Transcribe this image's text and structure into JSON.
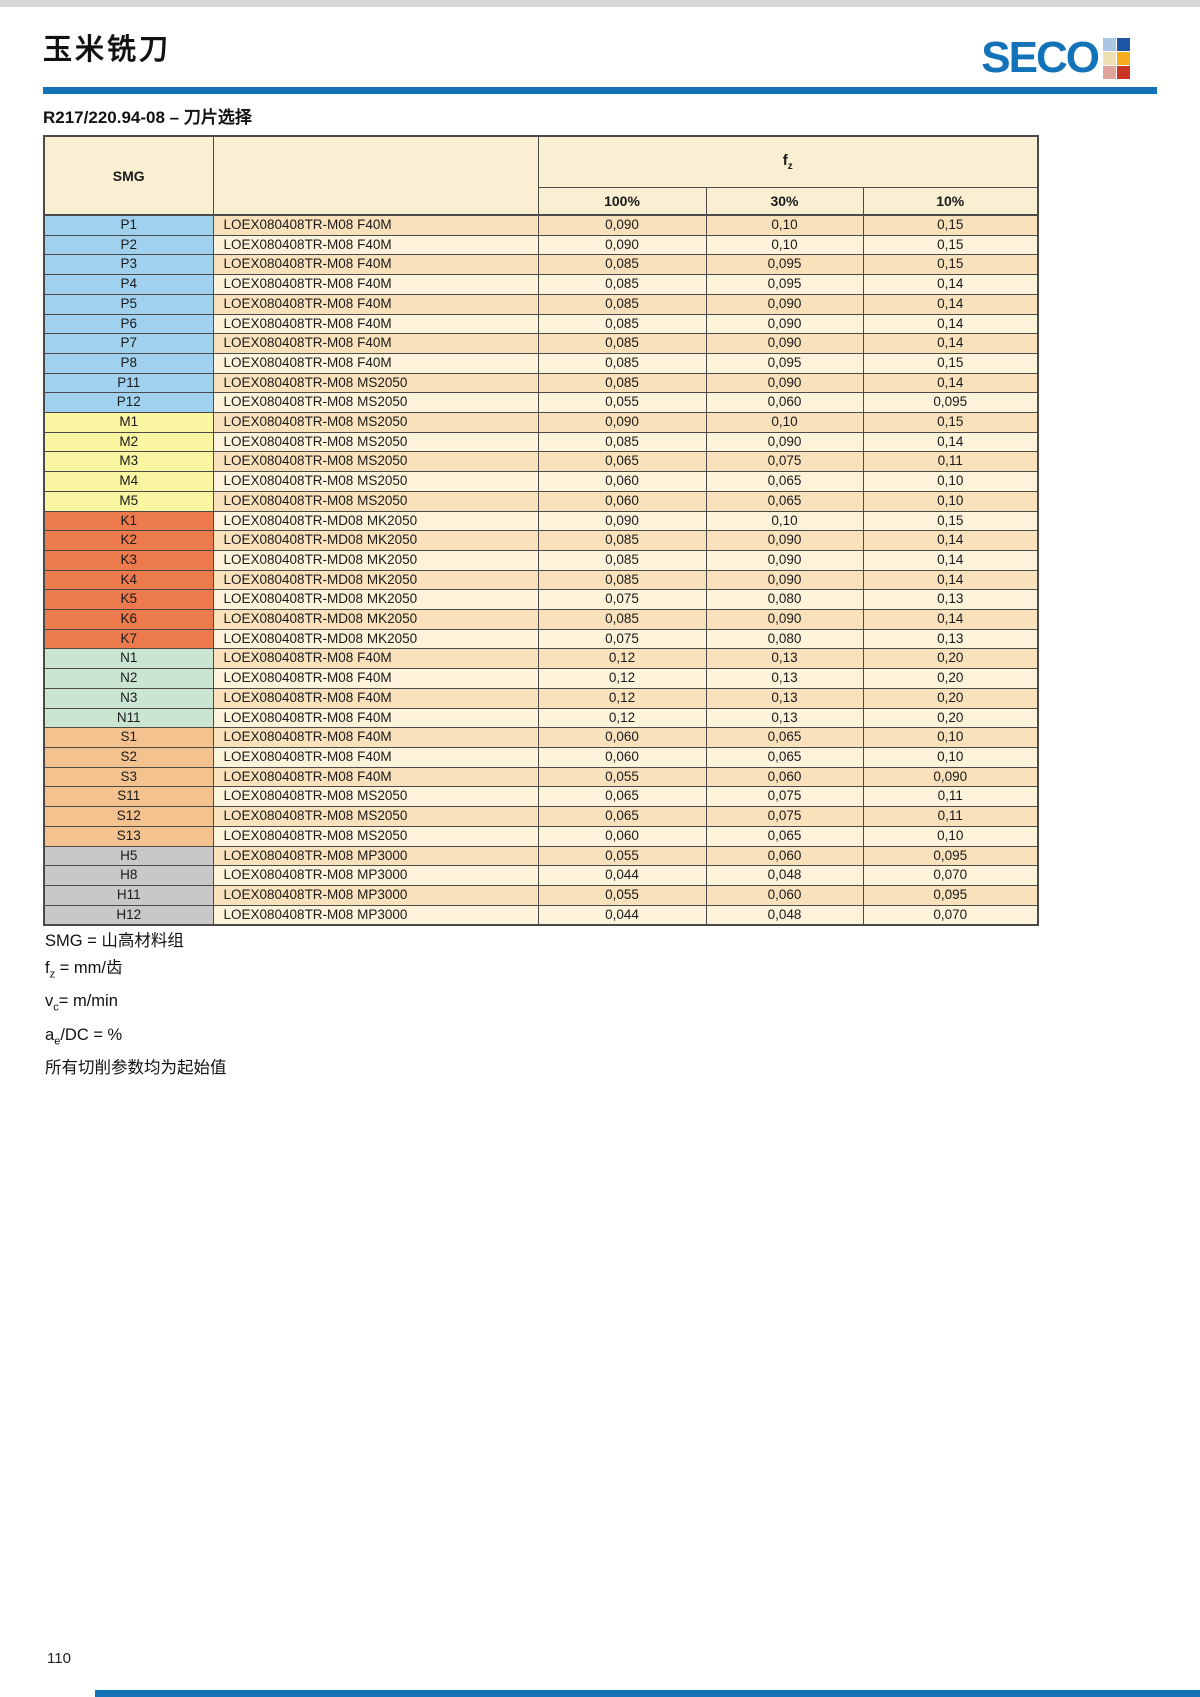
{
  "page": {
    "top_title": "玉米铣刀",
    "section_title": "R217/220.94-08 – 刀片选择",
    "page_number": "110"
  },
  "logo": {
    "text": "SECO",
    "tiles": [
      "#A9C7E5",
      "#1C56A4",
      "#F0DFB2",
      "#F6AC1E",
      "#DFA49C",
      "#C93425"
    ]
  },
  "table": {
    "header": {
      "smg_label": "SMG",
      "fz_label": "f",
      "fz_sub": "z",
      "percent_cols": [
        "100%",
        "30%",
        "10%"
      ]
    },
    "rows": [
      {
        "smg": "P1",
        "group": "P",
        "insert": "LOEX080408TR-M08 F40M",
        "v100": "0,090",
        "v30": "0,10",
        "v10": "0,15"
      },
      {
        "smg": "P2",
        "group": "P",
        "insert": "LOEX080408TR-M08 F40M",
        "v100": "0,090",
        "v30": "0,10",
        "v10": "0,15"
      },
      {
        "smg": "P3",
        "group": "P",
        "insert": "LOEX080408TR-M08 F40M",
        "v100": "0,085",
        "v30": "0,095",
        "v10": "0,15"
      },
      {
        "smg": "P4",
        "group": "P",
        "insert": "LOEX080408TR-M08 F40M",
        "v100": "0,085",
        "v30": "0,095",
        "v10": "0,14"
      },
      {
        "smg": "P5",
        "group": "P",
        "insert": "LOEX080408TR-M08 F40M",
        "v100": "0,085",
        "v30": "0,090",
        "v10": "0,14"
      },
      {
        "smg": "P6",
        "group": "P",
        "insert": "LOEX080408TR-M08 F40M",
        "v100": "0,085",
        "v30": "0,090",
        "v10": "0,14"
      },
      {
        "smg": "P7",
        "group": "P",
        "insert": "LOEX080408TR-M08 F40M",
        "v100": "0,085",
        "v30": "0,090",
        "v10": "0,14"
      },
      {
        "smg": "P8",
        "group": "P",
        "insert": "LOEX080408TR-M08 F40M",
        "v100": "0,085",
        "v30": "0,095",
        "v10": "0,15"
      },
      {
        "smg": "P11",
        "group": "P",
        "insert": "LOEX080408TR-M08 MS2050",
        "v100": "0,085",
        "v30": "0,090",
        "v10": "0,14"
      },
      {
        "smg": "P12",
        "group": "P",
        "insert": "LOEX080408TR-M08 MS2050",
        "v100": "0,055",
        "v30": "0,060",
        "v10": "0,095"
      },
      {
        "smg": "M1",
        "group": "M",
        "insert": "LOEX080408TR-M08 MS2050",
        "v100": "0,090",
        "v30": "0,10",
        "v10": "0,15"
      },
      {
        "smg": "M2",
        "group": "M",
        "insert": "LOEX080408TR-M08 MS2050",
        "v100": "0,085",
        "v30": "0,090",
        "v10": "0,14"
      },
      {
        "smg": "M3",
        "group": "M",
        "insert": "LOEX080408TR-M08 MS2050",
        "v100": "0,065",
        "v30": "0,075",
        "v10": "0,11"
      },
      {
        "smg": "M4",
        "group": "M",
        "insert": "LOEX080408TR-M08 MS2050",
        "v100": "0,060",
        "v30": "0,065",
        "v10": "0,10"
      },
      {
        "smg": "M5",
        "group": "M",
        "insert": "LOEX080408TR-M08 MS2050",
        "v100": "0,060",
        "v30": "0,065",
        "v10": "0,10"
      },
      {
        "smg": "K1",
        "group": "K",
        "insert": "LOEX080408TR-MD08 MK2050",
        "v100": "0,090",
        "v30": "0,10",
        "v10": "0,15"
      },
      {
        "smg": "K2",
        "group": "K",
        "insert": "LOEX080408TR-MD08 MK2050",
        "v100": "0,085",
        "v30": "0,090",
        "v10": "0,14"
      },
      {
        "smg": "K3",
        "group": "K",
        "insert": "LOEX080408TR-MD08 MK2050",
        "v100": "0,085",
        "v30": "0,090",
        "v10": "0,14"
      },
      {
        "smg": "K4",
        "group": "K",
        "insert": "LOEX080408TR-MD08 MK2050",
        "v100": "0,085",
        "v30": "0,090",
        "v10": "0,14"
      },
      {
        "smg": "K5",
        "group": "K",
        "insert": "LOEX080408TR-MD08 MK2050",
        "v100": "0,075",
        "v30": "0,080",
        "v10": "0,13"
      },
      {
        "smg": "K6",
        "group": "K",
        "insert": "LOEX080408TR-MD08 MK2050",
        "v100": "0,085",
        "v30": "0,090",
        "v10": "0,14"
      },
      {
        "smg": "K7",
        "group": "K",
        "insert": "LOEX080408TR-MD08 MK2050",
        "v100": "0,075",
        "v30": "0,080",
        "v10": "0,13"
      },
      {
        "smg": "N1",
        "group": "N",
        "insert": "LOEX080408TR-M08 F40M",
        "v100": "0,12",
        "v30": "0,13",
        "v10": "0,20"
      },
      {
        "smg": "N2",
        "group": "N",
        "insert": "LOEX080408TR-M08 F40M",
        "v100": "0,12",
        "v30": "0,13",
        "v10": "0,20"
      },
      {
        "smg": "N3",
        "group": "N",
        "insert": "LOEX080408TR-M08 F40M",
        "v100": "0,12",
        "v30": "0,13",
        "v10": "0,20"
      },
      {
        "smg": "N11",
        "group": "N",
        "insert": "LOEX080408TR-M08 F40M",
        "v100": "0,12",
        "v30": "0,13",
        "v10": "0,20"
      },
      {
        "smg": "S1",
        "group": "S",
        "insert": "LOEX080408TR-M08 F40M",
        "v100": "0,060",
        "v30": "0,065",
        "v10": "0,10"
      },
      {
        "smg": "S2",
        "group": "S",
        "insert": "LOEX080408TR-M08 F40M",
        "v100": "0,060",
        "v30": "0,065",
        "v10": "0,10"
      },
      {
        "smg": "S3",
        "group": "S",
        "insert": "LOEX080408TR-M08 F40M",
        "v100": "0,055",
        "v30": "0,060",
        "v10": "0,090"
      },
      {
        "smg": "S11",
        "group": "S",
        "insert": "LOEX080408TR-M08 MS2050",
        "v100": "0,065",
        "v30": "0,075",
        "v10": "0,11"
      },
      {
        "smg": "S12",
        "group": "S",
        "insert": "LOEX080408TR-M08 MS2050",
        "v100": "0,065",
        "v30": "0,075",
        "v10": "0,11"
      },
      {
        "smg": "S13",
        "group": "S",
        "insert": "LOEX080408TR-M08 MS2050",
        "v100": "0,060",
        "v30": "0,065",
        "v10": "0,10"
      },
      {
        "smg": "H5",
        "group": "H",
        "insert": "LOEX080408TR-M08 MP3000",
        "v100": "0,055",
        "v30": "0,060",
        "v10": "0,095"
      },
      {
        "smg": "H8",
        "group": "H",
        "insert": "LOEX080408TR-M08 MP3000",
        "v100": "0,044",
        "v30": "0,048",
        "v10": "0,070"
      },
      {
        "smg": "H11",
        "group": "H",
        "insert": "LOEX080408TR-M08 MP3000",
        "v100": "0,055",
        "v30": "0,060",
        "v10": "0,095"
      },
      {
        "smg": "H12",
        "group": "H",
        "insert": "LOEX080408TR-M08 MP3000",
        "v100": "0,044",
        "v30": "0,048",
        "v10": "0,070"
      }
    ]
  },
  "notes": [
    {
      "pre": "SMG = 山高材料组",
      "sub": "",
      "post": ""
    },
    {
      "pre": "f",
      "sub": "z",
      "post": " = mm/齿"
    },
    {
      "pre": "v",
      "sub": "c",
      "post": "= m/min"
    },
    {
      "pre": "a",
      "sub": "e",
      "post": "/DC = %"
    },
    {
      "pre": "所有切削参数均为起始值",
      "sub": "",
      "post": ""
    }
  ],
  "colors": {
    "brand_blue": "#1273B8",
    "top_strip": "#D8D8D8",
    "header_bg": "#FAEFD2",
    "row_dark": "#F9E1BC",
    "row_light": "#FCF3DA",
    "border": "#4A4A48",
    "group_P": "#A0D2F0",
    "group_M": "#FAF5A0",
    "group_K": "#ED7A4D",
    "group_N": "#CBE5D3",
    "group_S": "#F4C28F",
    "group_H": "#C8C8C8"
  }
}
